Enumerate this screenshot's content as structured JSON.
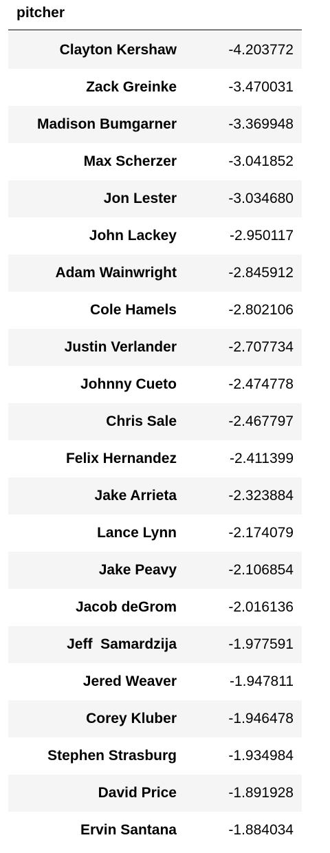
{
  "index_name": "pitcher",
  "rows": [
    {
      "pitcher": "Clayton Kershaw",
      "value": "-4.203772"
    },
    {
      "pitcher": "Zack Greinke",
      "value": "-3.470031"
    },
    {
      "pitcher": "Madison Bumgarner",
      "value": "-3.369948"
    },
    {
      "pitcher": "Max Scherzer",
      "value": "-3.041852"
    },
    {
      "pitcher": "Jon Lester",
      "value": "-3.034680"
    },
    {
      "pitcher": "John Lackey",
      "value": "-2.950117"
    },
    {
      "pitcher": "Adam Wainwright",
      "value": "-2.845912"
    },
    {
      "pitcher": "Cole Hamels",
      "value": "-2.802106"
    },
    {
      "pitcher": "Justin Verlander",
      "value": "-2.707734"
    },
    {
      "pitcher": "Johnny Cueto",
      "value": "-2.474778"
    },
    {
      "pitcher": "Chris Sale",
      "value": "-2.467797"
    },
    {
      "pitcher": "Felix Hernandez",
      "value": "-2.411399"
    },
    {
      "pitcher": "Jake Arrieta",
      "value": "-2.323884"
    },
    {
      "pitcher": "Lance Lynn",
      "value": "-2.174079"
    },
    {
      "pitcher": "Jake Peavy",
      "value": "-2.106854"
    },
    {
      "pitcher": "Jacob deGrom",
      "value": "-2.016136"
    },
    {
      "pitcher": "Jeff  Samardzija",
      "value": "-1.977591"
    },
    {
      "pitcher": "Jered Weaver",
      "value": "-1.947811"
    },
    {
      "pitcher": "Corey Kluber",
      "value": "-1.946478"
    },
    {
      "pitcher": "Stephen Strasburg",
      "value": "-1.934984"
    },
    {
      "pitcher": "David Price",
      "value": "-1.891928"
    },
    {
      "pitcher": "Ervin Santana",
      "value": "-1.884034"
    }
  ]
}
